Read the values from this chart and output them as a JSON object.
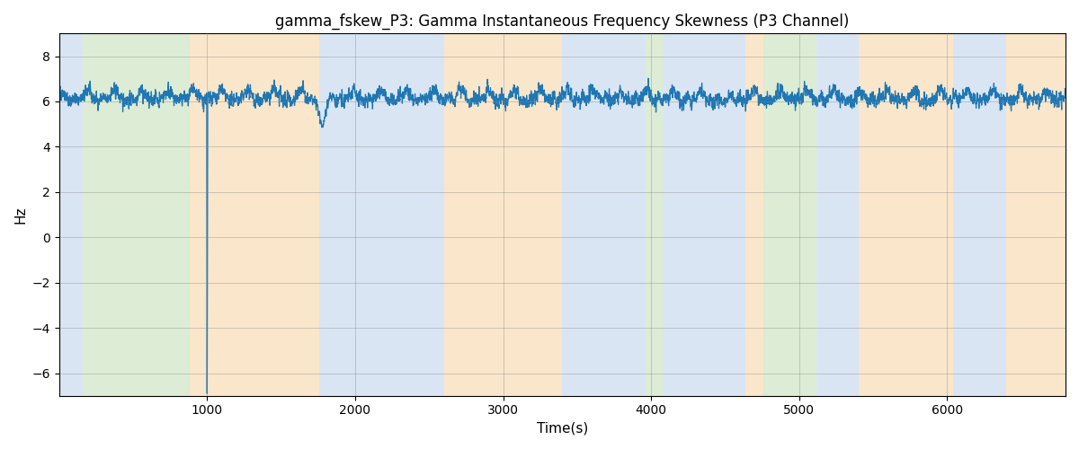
{
  "title": "gamma_fskew_P3: Gamma Instantaneous Frequency Skewness (P3 Channel)",
  "xlabel": "Time(s)",
  "ylabel": "Hz",
  "xlim": [
    0,
    6800
  ],
  "ylim": [
    -7,
    9
  ],
  "yticks": [
    -6,
    -4,
    -2,
    0,
    2,
    4,
    6,
    8
  ],
  "xticks": [
    1000,
    2000,
    3000,
    4000,
    5000,
    6000
  ],
  "line_color": "#1f77b4",
  "line_width": 0.9,
  "signal_mean": 6.2,
  "signal_std": 0.28,
  "colored_regions": [
    {
      "xmin": 0,
      "xmax": 160,
      "color": "#aec6e8",
      "alpha": 0.45
    },
    {
      "xmin": 160,
      "xmax": 880,
      "color": "#b5d5a0",
      "alpha": 0.45
    },
    {
      "xmin": 880,
      "xmax": 1760,
      "color": "#f5c98a",
      "alpha": 0.45
    },
    {
      "xmin": 1760,
      "xmax": 2600,
      "color": "#aec6e8",
      "alpha": 0.45
    },
    {
      "xmin": 2600,
      "xmax": 3400,
      "color": "#f5c98a",
      "alpha": 0.45
    },
    {
      "xmin": 3400,
      "xmax": 3960,
      "color": "#aec6e8",
      "alpha": 0.45
    },
    {
      "xmin": 3960,
      "xmax": 4080,
      "color": "#b5d5a0",
      "alpha": 0.45
    },
    {
      "xmin": 4080,
      "xmax": 4640,
      "color": "#aec6e8",
      "alpha": 0.45
    },
    {
      "xmin": 4640,
      "xmax": 4760,
      "color": "#f5c98a",
      "alpha": 0.45
    },
    {
      "xmin": 4760,
      "xmax": 5120,
      "color": "#b5d5a0",
      "alpha": 0.45
    },
    {
      "xmin": 5120,
      "xmax": 5400,
      "color": "#aec6e8",
      "alpha": 0.45
    },
    {
      "xmin": 5400,
      "xmax": 6040,
      "color": "#f5c98a",
      "alpha": 0.45
    },
    {
      "xmin": 6040,
      "xmax": 6400,
      "color": "#aec6e8",
      "alpha": 0.45
    },
    {
      "xmin": 6400,
      "xmax": 6800,
      "color": "#f5c98a",
      "alpha": 0.45
    }
  ],
  "figsize": [
    12.0,
    5.0
  ],
  "dpi": 100,
  "seed": 42
}
